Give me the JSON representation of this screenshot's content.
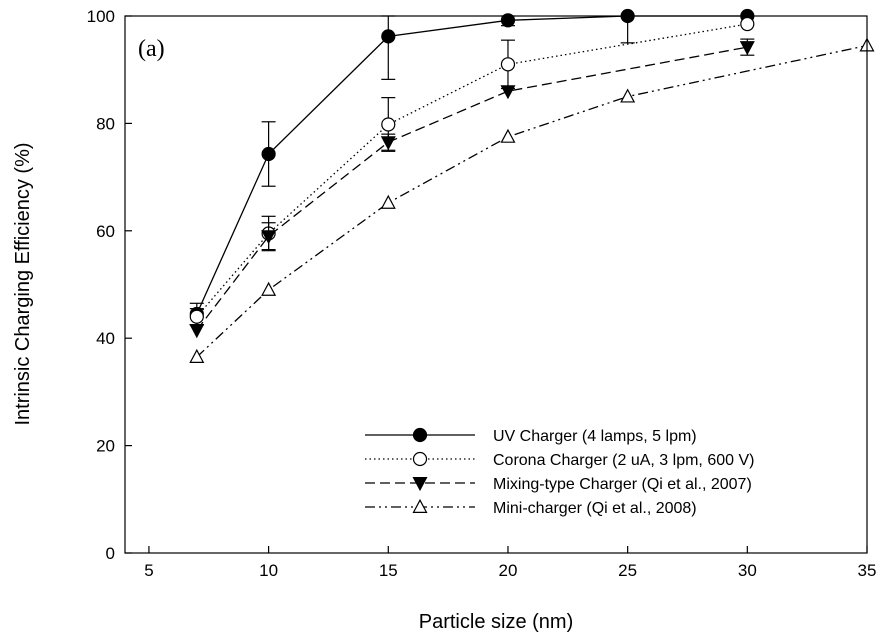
{
  "chart_data": {
    "type": "line",
    "panel_label": "(a)",
    "xlabel": "Particle size (nm)",
    "ylabel": "Intrinsic Charging Efficiency (%)",
    "xlim": [
      4,
      35
    ],
    "ylim": [
      0,
      100
    ],
    "xticks": [
      5,
      10,
      15,
      20,
      25,
      30,
      35
    ],
    "yticks": [
      0,
      20,
      40,
      60,
      80,
      100
    ],
    "legend_position": "lower-right",
    "series": [
      {
        "name": "UV Charger (4 lamps, 5 lpm)",
        "style": "solid",
        "marker": "filled-circle",
        "x": [
          7,
          10,
          15,
          20,
          25,
          30
        ],
        "y": [
          44.5,
          74.3,
          96.2,
          99.2,
          100,
          100
        ],
        "err": [
          2,
          6,
          8,
          1,
          5,
          0
        ]
      },
      {
        "name": "Corona Charger (2 uA, 3 lpm, 600 V)",
        "style": "dotted",
        "marker": "open-circle",
        "x": [
          7,
          10,
          15,
          20,
          30
        ],
        "y": [
          44,
          59.5,
          79.8,
          91,
          98.5
        ],
        "err": [
          1.5,
          3.2,
          5,
          4.5,
          0
        ]
      },
      {
        "name": "Mixing-type Charger (Qi et al., 2007)",
        "style": "dashed",
        "marker": "filled-triangle-down",
        "x": [
          7,
          10,
          15,
          20,
          30
        ],
        "y": [
          41.5,
          59,
          76.5,
          86,
          94.2
        ],
        "err": [
          0,
          2.5,
          1.5,
          0,
          1.5
        ]
      },
      {
        "name": "Mini-charger (Qi et al., 2008)",
        "style": "dashdot",
        "marker": "open-triangle-up",
        "x": [
          7,
          10,
          15,
          20,
          25,
          35
        ],
        "y": [
          36.5,
          49,
          65.2,
          77.5,
          85,
          94.5
        ],
        "err": [
          0,
          0,
          0,
          0,
          0,
          0
        ]
      }
    ]
  }
}
